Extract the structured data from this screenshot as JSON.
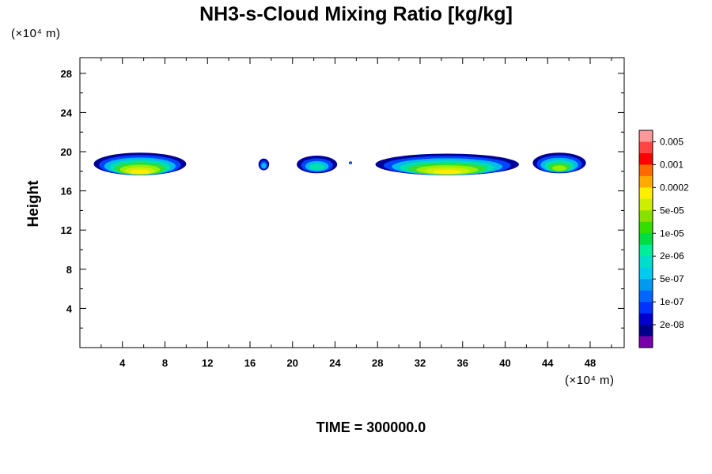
{
  "title": "NH3-s-Cloud Mixing Ratio [kg/kg]",
  "y_unit": "(×10⁴ m)",
  "x_unit": "(×10⁴ m)",
  "time_label": "TIME = 300000.0",
  "chart_data": {
    "type": "heatmap",
    "title": "NH3-s-Cloud Mixing Ratio [kg/kg]",
    "xlabel": "",
    "ylabel": "Height",
    "xlim": [
      0,
      51.2
    ],
    "ylim": [
      0,
      29.6
    ],
    "x_ticks": [
      "4",
      "8",
      "12",
      "16",
      "20",
      "24",
      "28",
      "32",
      "36",
      "40",
      "44",
      "48"
    ],
    "y_ticks": [
      "4",
      "8",
      "12",
      "16",
      "20",
      "24",
      "28"
    ],
    "colorbar": {
      "labels": [
        "0.005",
        "0.001",
        "0.0002",
        "5e-05",
        "1e-05",
        "2e-06",
        "5e-07",
        "1e-07",
        "2e-08"
      ],
      "colors": [
        "#ff9999",
        "#ff4444",
        "#ff0000",
        "#ff6a00",
        "#ffaa00",
        "#ffee00",
        "#ccee00",
        "#88e000",
        "#33dd00",
        "#00dd44",
        "#00ee99",
        "#00ddcc",
        "#00ccee",
        "#0099ee",
        "#0066ff",
        "#0033ff",
        "#0000cc",
        "#000088",
        "#7700aa"
      ]
    },
    "cloud_clusters": [
      {
        "x_range": [
          1.3,
          10.0
        ],
        "y_range": [
          17.6,
          19.9
        ]
      },
      {
        "x_range": [
          16.8,
          17.8
        ],
        "y_range": [
          18.1,
          19.3
        ]
      },
      {
        "x_range": [
          20.4,
          24.2
        ],
        "y_range": [
          17.8,
          19.6
        ]
      },
      {
        "x_range": [
          25.3,
          25.6
        ],
        "y_range": [
          18.7,
          19.0
        ]
      },
      {
        "x_range": [
          27.8,
          41.3
        ],
        "y_range": [
          17.6,
          19.8
        ]
      },
      {
        "x_range": [
          42.6,
          47.6
        ],
        "y_range": [
          17.8,
          19.9
        ]
      }
    ]
  }
}
